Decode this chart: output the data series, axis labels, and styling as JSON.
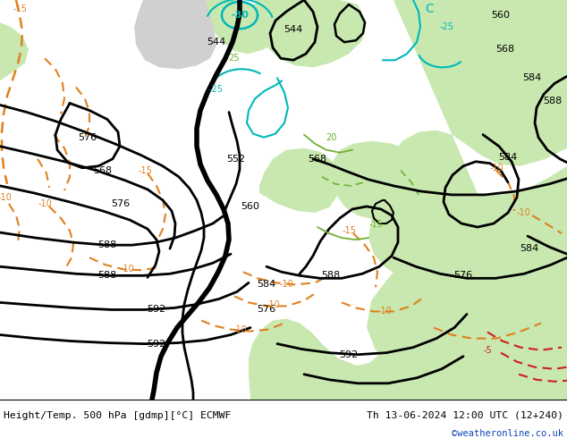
{
  "title_left": "Height/Temp. 500 hPa [gdmp][°C] ECMWF",
  "title_right": "Th 13-06-2024 12:00 UTC (12+240)",
  "watermark": "©weatheronline.co.uk",
  "bg_sea": "#d0d0d0",
  "bg_land": "#c8e8b0",
  "bg_land2": "#b8dc9c",
  "fig_width": 6.34,
  "fig_height": 4.9,
  "dpi": 100,
  "black": "#000000",
  "orange": "#e08020",
  "cyan": "#00b8b8",
  "green": "#70b030",
  "red": "#cc2020"
}
